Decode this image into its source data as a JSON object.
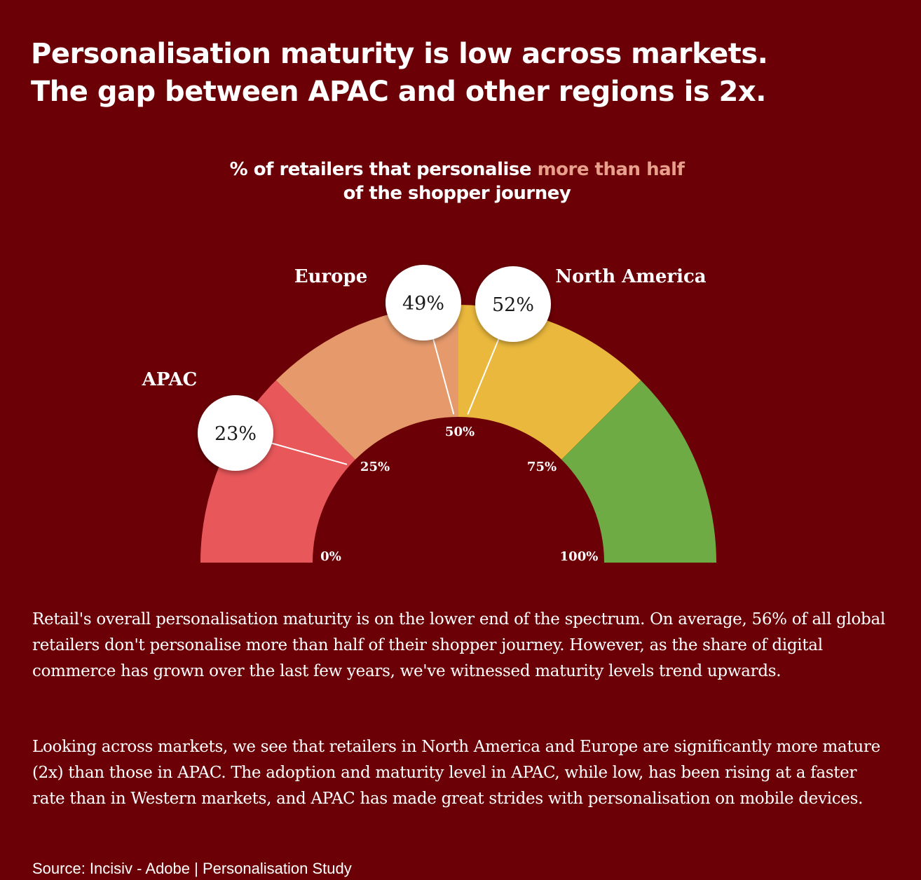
{
  "headline": {
    "line1": "Personalisation maturity is low across markets.",
    "line2": "The gap between APAC and other regions is 2x."
  },
  "chart_title": {
    "part1": "% of retailers that personalise ",
    "highlight": "more than half",
    "line2": "of the shopper journey",
    "highlight_color": "#e8a08c"
  },
  "chart_data": {
    "type": "gauge",
    "range": [
      0,
      100
    ],
    "bands": [
      {
        "from": 0,
        "to": 25,
        "color": "#e8575a"
      },
      {
        "from": 25,
        "to": 50,
        "color": "#e69a6c"
      },
      {
        "from": 50,
        "to": 75,
        "color": "#eab83c"
      },
      {
        "from": 75,
        "to": 100,
        "color": "#6fab45"
      }
    ],
    "ticks": [
      {
        "value": 0,
        "label": "0%"
      },
      {
        "value": 25,
        "label": "25%"
      },
      {
        "value": 50,
        "label": "50%"
      },
      {
        "value": 75,
        "label": "75%"
      },
      {
        "value": 100,
        "label": "100%"
      }
    ],
    "markers": [
      {
        "region": "APAC",
        "value": 23,
        "label": "23%"
      },
      {
        "region": "Europe",
        "value": 49,
        "label": "49%"
      },
      {
        "region": "North America",
        "value": 52,
        "label": "52%"
      }
    ]
  },
  "body": {
    "paragraph1": "Retail's overall personalisation maturity is on the lower end of the spectrum. On average, 56% of all global retailers don't personalise more than half of their shopper journey. However, as the share of digital commerce has grown over the last few years, we've witnessed maturity levels trend upwards.",
    "paragraph2": "Looking across markets, we see that retailers in North America and Europe are significantly more mature (2x) than those in APAC. The adoption and maturity level in APAC, while low, has been rising at a faster rate than in Western markets, and APAC has made great strides with personalisation on mobile devices."
  },
  "source": "Source: Incisiv - Adobe | Personalisation Study",
  "colors": {
    "background": "#6b0006",
    "text": "#ffffff"
  }
}
